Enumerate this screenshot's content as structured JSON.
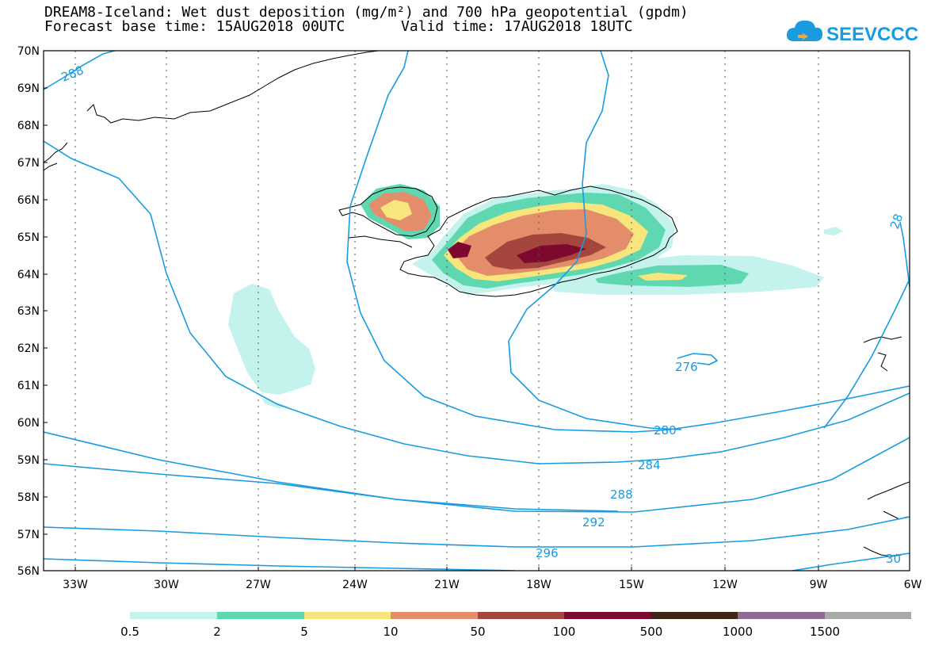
{
  "header": {
    "title": "DREAM8-Iceland: Wet dust deposition (mg/m²) and 700 hPa geopotential (gpdm)",
    "base_time": "Forecast base time: 15AUG2018 00UTC",
    "valid_time": "Valid time: 17AUG2018 18UTC",
    "logo_text": "SEEVCCC"
  },
  "colors": {
    "contour": "#1a9be0",
    "coast": "#000000",
    "grid": "#555555"
  },
  "map": {
    "lat_labels": [
      "70N",
      "69N",
      "68N",
      "67N",
      "66N",
      "65N",
      "64N",
      "63N",
      "62N",
      "61N",
      "60N",
      "59N",
      "58N",
      "57N",
      "56N"
    ],
    "lon_labels": [
      "33W",
      "30W",
      "27W",
      "24W",
      "21W",
      "18W",
      "15W",
      "12W",
      "9W",
      "6W"
    ],
    "contour_labels": [
      "288",
      "276",
      "280",
      "284",
      "288",
      "292",
      "296",
      "28",
      "30"
    ]
  },
  "legend": {
    "bins": [
      {
        "color": "#c4f2ec"
      },
      {
        "color": "#5fd8b2"
      },
      {
        "color": "#f8e57c"
      },
      {
        "color": "#e48d6b"
      },
      {
        "color": "#a4453e"
      },
      {
        "color": "#7d0a2e"
      },
      {
        "color": "#3d2617"
      },
      {
        "color": "#8e6c95"
      },
      {
        "color": "#a9a9a9"
      }
    ],
    "labels": [
      "0.5",
      "2",
      "5",
      "10",
      "50",
      "100",
      "500",
      "1000",
      "1500"
    ]
  }
}
